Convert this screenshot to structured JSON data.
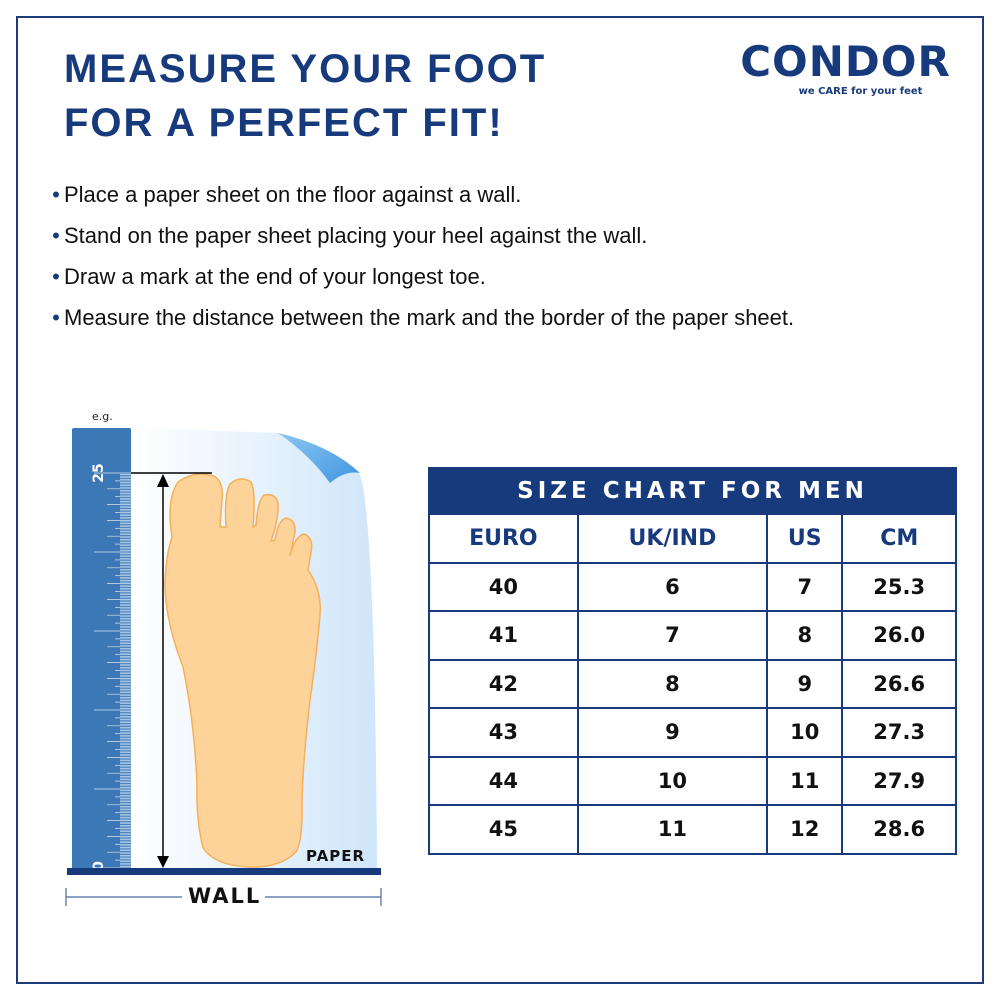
{
  "title": {
    "line1": "MEASURE YOUR FOOT",
    "line2": "FOR A PERFECT FIT!"
  },
  "logo": {
    "name": "CONDOR",
    "tagline": "we CARE for your feet",
    "color": "#173a7d"
  },
  "instructions": [
    "Place a paper sheet on the floor against a wall.",
    "Stand on the paper sheet placing your heel against the wall.",
    "Draw a mark at the end of your longest toe.",
    "Measure the distance between the mark and the border of the paper sheet."
  ],
  "diagram": {
    "example_label": "e.g.",
    "ruler_start": "0",
    "ruler_mark": "25",
    "paper_label": "PAPER",
    "wall_label": "WALL",
    "ruler_color": "#3b78b5",
    "foot_color": "#fdd39a"
  },
  "size_chart": {
    "title": "SIZE CHART FOR MEN",
    "columns": [
      "EURO",
      "UK/IND",
      "US",
      "CM"
    ],
    "rows": [
      [
        "40",
        "6",
        "7",
        "25.3"
      ],
      [
        "41",
        "7",
        "8",
        "26.0"
      ],
      [
        "42",
        "8",
        "9",
        "26.6"
      ],
      [
        "43",
        "9",
        "10",
        "27.3"
      ],
      [
        "44",
        "10",
        "11",
        "27.9"
      ],
      [
        "45",
        "11",
        "12",
        "28.6"
      ]
    ]
  }
}
